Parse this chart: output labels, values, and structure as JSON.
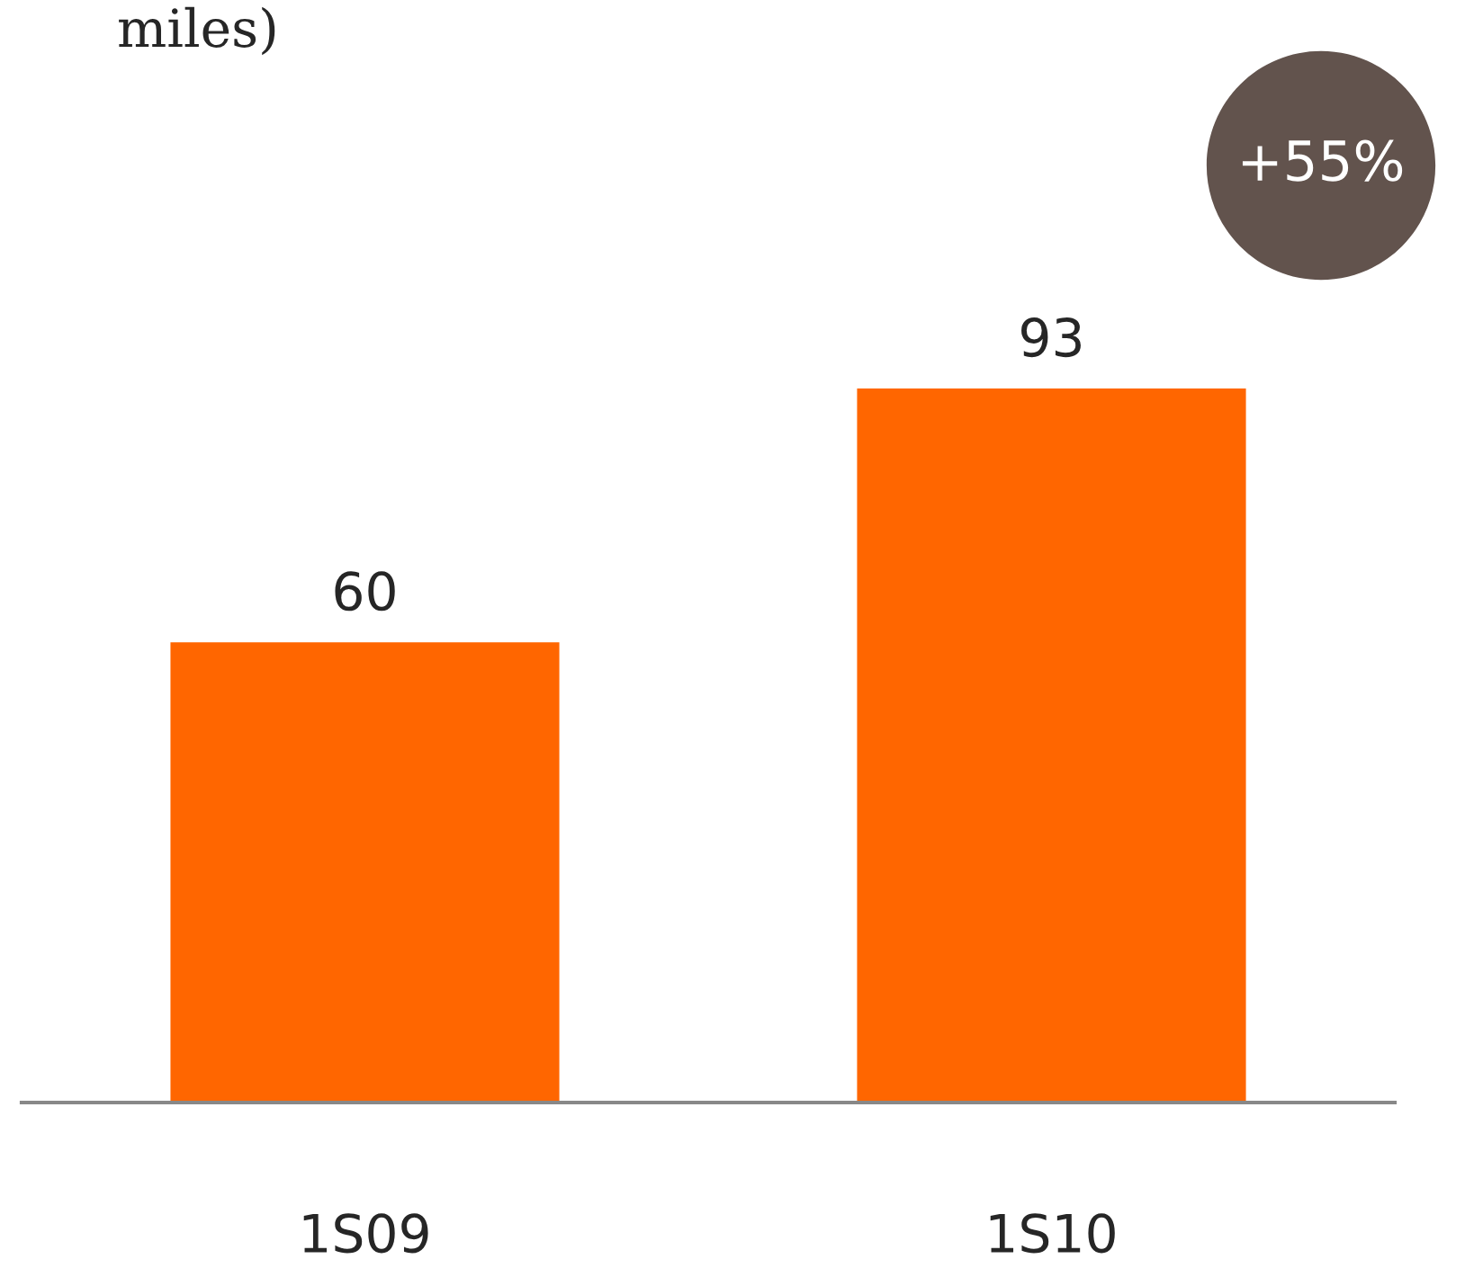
{
  "chart_data": {
    "type": "bar",
    "title": "miles)",
    "categories": [
      "1S09",
      "1S10"
    ],
    "values": [
      60,
      93
    ],
    "color": "#ff6600",
    "data_labels": true,
    "grid": false,
    "legend": false,
    "tick_labels": "x",
    "annotations": [
      "+55%"
    ]
  }
}
